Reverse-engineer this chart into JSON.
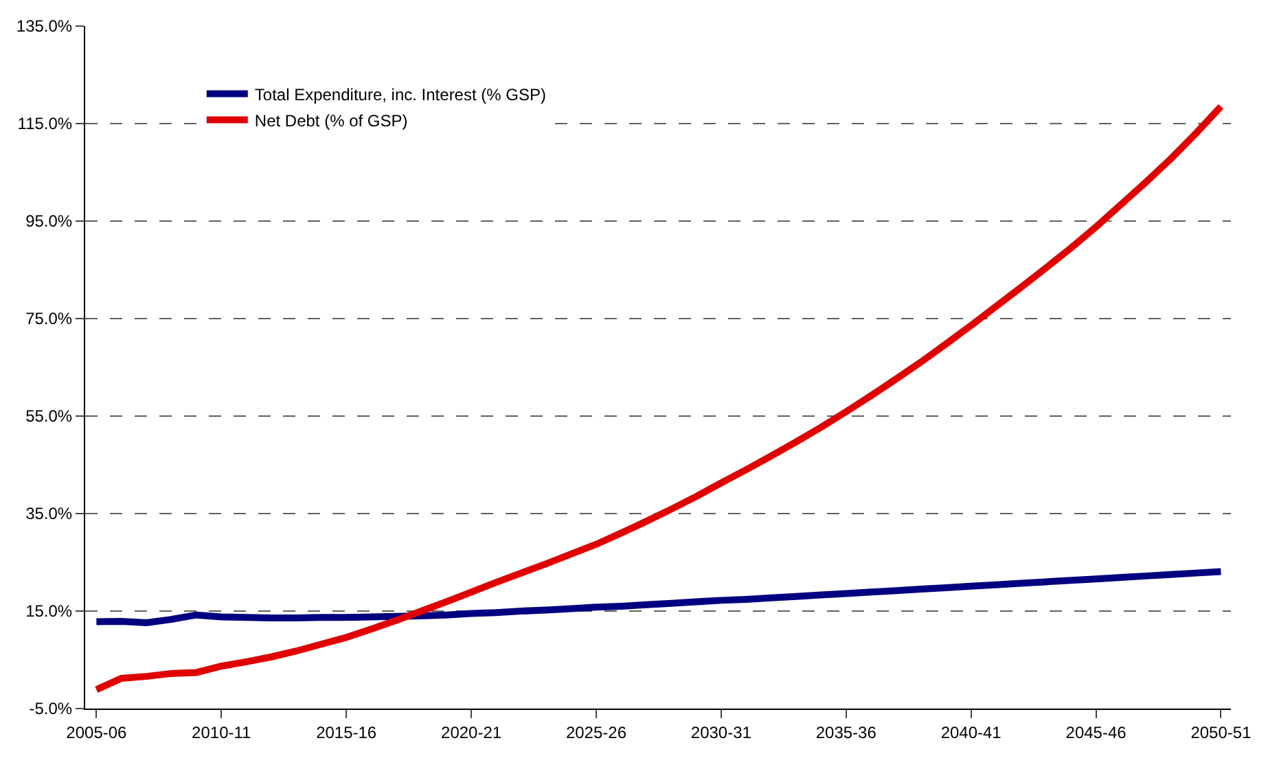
{
  "chart_data": {
    "type": "line",
    "categories": [
      "2005-06",
      null,
      null,
      null,
      null,
      "2010-11",
      null,
      null,
      null,
      null,
      "2015-16",
      null,
      null,
      null,
      null,
      "2020-21",
      null,
      null,
      null,
      null,
      "2025-26",
      null,
      null,
      null,
      null,
      "2030-31",
      null,
      null,
      null,
      null,
      "2035-36",
      null,
      null,
      null,
      null,
      "2040-41",
      null,
      null,
      null,
      null,
      "2045-46",
      null,
      null,
      null,
      null,
      "2050-51"
    ],
    "series": [
      {
        "name": "Total Expenditure, inc. Interest (% GSP)",
        "color": "#000080",
        "values": [
          12.8,
          12.9,
          12.6,
          13.3,
          14.2,
          13.8,
          13.7,
          13.6,
          13.6,
          13.7,
          13.7,
          13.8,
          13.9,
          14.0,
          14.2,
          14.5,
          14.7,
          15.0,
          15.2,
          15.5,
          15.8,
          16.0,
          16.3,
          16.6,
          16.9,
          17.2,
          17.4,
          17.7,
          18.0,
          18.3,
          18.6,
          18.9,
          19.2,
          19.5,
          19.8,
          20.1,
          20.4,
          20.7,
          21.0,
          21.3,
          21.6,
          21.9,
          22.2,
          22.5,
          22.8,
          23.1
        ]
      },
      {
        "name": "Net Debt (% of GSP)",
        "color": "#e00000",
        "values": [
          -1.1,
          1.2,
          1.6,
          2.2,
          2.4,
          3.7,
          4.6,
          5.6,
          6.8,
          8.2,
          9.6,
          11.3,
          13.1,
          15.0,
          16.9,
          18.9,
          20.9,
          22.8,
          24.7,
          26.7,
          28.7,
          31.0,
          33.4,
          35.9,
          38.5,
          41.3,
          44.0,
          46.8,
          49.7,
          52.7,
          55.9,
          59.2,
          62.6,
          66.1,
          69.8,
          73.6,
          77.5,
          81.4,
          85.4,
          89.5,
          93.8,
          98.4,
          103.0,
          107.8,
          113.0,
          118.5
        ]
      }
    ],
    "ylim": [
      -5,
      135
    ],
    "yticks": [
      {
        "value": -5,
        "label": "-5.0%"
      },
      {
        "value": 15,
        "label": "15.0%"
      },
      {
        "value": 35,
        "label": "35.0%"
      },
      {
        "value": 55,
        "label": "55.0%"
      },
      {
        "value": 75,
        "label": "75.0%"
      },
      {
        "value": 95,
        "label": "95.0%"
      },
      {
        "value": 115,
        "label": "115.0%"
      },
      {
        "value": 135,
        "label": "135.0%"
      }
    ],
    "grid": "y",
    "legend": "top left",
    "line_style": "solid",
    "marker": "none"
  }
}
